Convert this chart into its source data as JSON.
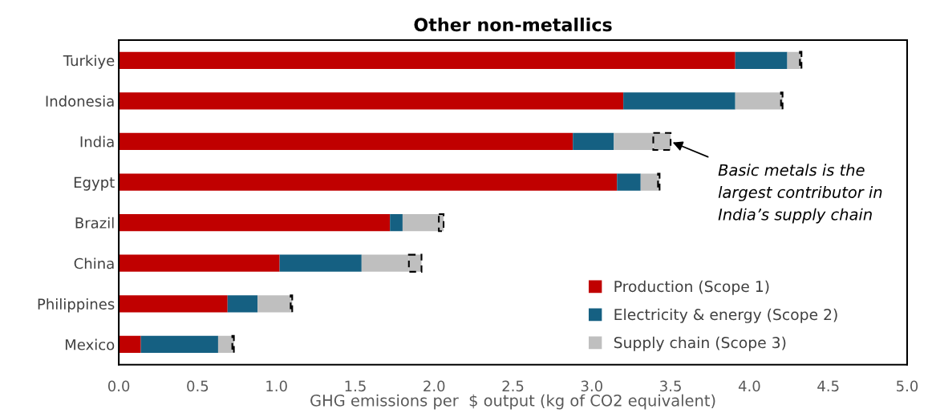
{
  "chart_data": {
    "type": "bar",
    "orientation": "horizontal",
    "stacked": true,
    "title": "Other non-metallics",
    "xlabel": "GHG emissions per  $ output (kg of CO2 equivalent)",
    "categories": [
      "Turkiye",
      "Indonesia",
      "India",
      "Egypt",
      "Brazil",
      "China",
      "Philippines",
      "Mexico"
    ],
    "series": [
      {
        "name": "Production (Scope 1)",
        "color": "#c00000",
        "values": [
          3.91,
          3.2,
          2.88,
          3.16,
          1.72,
          1.02,
          0.69,
          0.14
        ]
      },
      {
        "name": "Electricity & energy (Scope 2)",
        "color": "#156082",
        "values": [
          0.33,
          0.71,
          0.26,
          0.15,
          0.08,
          0.52,
          0.19,
          0.49
        ]
      },
      {
        "name": "Supply chain (Scope 3)",
        "color": "#bfbfbf",
        "values": [
          0.08,
          0.29,
          0.25,
          0.11,
          0.23,
          0.3,
          0.21,
          0.09
        ]
      },
      {
        "color": "#bfbfbf",
        "line_style": "dashed",
        "values": [
          0.01,
          0.01,
          0.11,
          0.01,
          0.03,
          0.08,
          0.01,
          0.01
        ]
      }
    ],
    "xlim": [
      0,
      5
    ],
    "xticks": [
      {
        "value": 0,
        "label": "0.0"
      },
      0.5,
      {
        "value": 1,
        "label": "1.0"
      },
      1.5,
      {
        "value": 2,
        "label": "2.0"
      },
      2.5,
      {
        "value": 3,
        "label": "3.0"
      },
      3.5,
      {
        "value": 4,
        "label": "4.0"
      },
      4.5,
      {
        "value": 5,
        "label": "5.0"
      }
    ],
    "annotations": [
      {
        "text": "Basic metals is the\nlargest contributor in\nIndia’s supply chain",
        "x": 3.5,
        "y": "India"
      }
    ],
    "legend": "bottom right",
    "grid": false
  }
}
